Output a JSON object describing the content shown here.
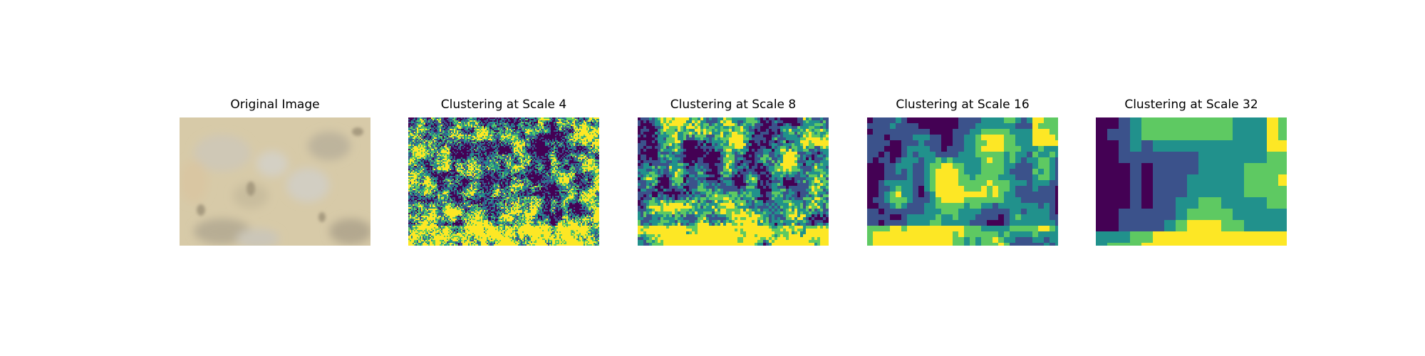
{
  "figure": {
    "panels": [
      {
        "title": "Original Image",
        "kind": "photo"
      },
      {
        "title": "Clustering at Scale 4",
        "kind": "cluster",
        "scale": 4
      },
      {
        "title": "Clustering at Scale 8",
        "kind": "cluster",
        "scale": 8
      },
      {
        "title": "Clustering at Scale 16",
        "kind": "cluster",
        "scale": 16
      },
      {
        "title": "Clustering at Scale 32",
        "kind": "cluster",
        "scale": 32
      }
    ],
    "cluster_colors": [
      "#440154",
      "#3b528b",
      "#21918c",
      "#5ec962",
      "#fde725"
    ],
    "photo_colors": {
      "base": "#d8cbab",
      "crown": "#c7c4b8",
      "shadow": "#a89e84"
    }
  }
}
